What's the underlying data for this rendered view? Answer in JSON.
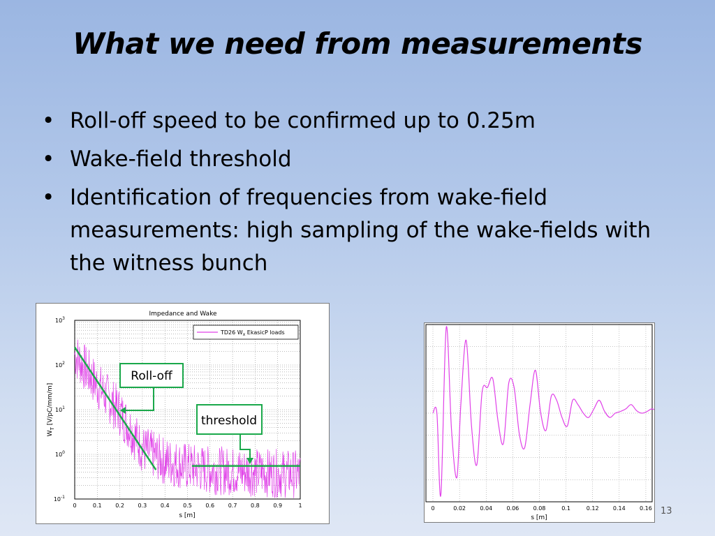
{
  "slide": {
    "title": "What we need from measurements",
    "bullets": [
      "Roll-off speed to be confirmed up to 0.25m",
      "Wake-field threshold",
      "Identification of frequencies from wake-field measurements: high sampling of the wake-fields with the witness bunch"
    ],
    "page_number": "13"
  },
  "colors": {
    "series": "#e040e8",
    "annotation": "#1aa84a"
  },
  "chart_data": [
    {
      "type": "line",
      "title": "Impedance and Wake",
      "xlabel": "s [m]",
      "ylabel_main": "W",
      "ylabel_sub": "T",
      "ylabel_rest": " [V/pC/mm/m]",
      "legend": {
        "prefix": "TD26 W",
        "sub": "x",
        "suffix": " EkasicP loads"
      },
      "legend_placement": "top-right",
      "y_scale": "log",
      "xlim": [
        0,
        1
      ],
      "ylim": [
        0.1,
        1000
      ],
      "grid": true,
      "x_ticks": [
        "0",
        "0.1",
        "0.2",
        "0.3",
        "0.4",
        "0.5",
        "0.6",
        "0.7",
        "0.8",
        "0.9",
        "1"
      ],
      "y_ticks": [
        {
          "base": "10",
          "exp": "-1"
        },
        {
          "base": "10",
          "exp": "0"
        },
        {
          "base": "10",
          "exp": "1"
        },
        {
          "base": "10",
          "exp": "2"
        },
        {
          "base": "10",
          "exp": "3"
        }
      ],
      "annotations": {
        "rolloff_label": "Roll-off",
        "threshold_label": "threshold",
        "rolloff_line": {
          "x": [
            0,
            0.36
          ],
          "y": [
            250,
            0.45
          ]
        },
        "threshold_line": {
          "x": [
            0.52,
            1
          ],
          "y": [
            0.55,
            0.55
          ]
        }
      },
      "series_envelope": {
        "s": [
          0,
          0.05,
          0.1,
          0.15,
          0.2,
          0.25,
          0.3,
          0.4,
          0.5,
          0.6,
          0.8,
          1
        ],
        "W": [
          200,
          90,
          40,
          20,
          10,
          4,
          1.5,
          0.8,
          0.6,
          0.5,
          0.45,
          0.4
        ]
      }
    },
    {
      "type": "line",
      "xlabel": "s [m]",
      "xlim": [
        0,
        0.17
      ],
      "grid": true,
      "x_ticks": [
        "0",
        "0.02",
        "0.04",
        "0.06",
        "0.08",
        "0.1",
        "0.12",
        "0.14",
        "0.16"
      ],
      "points": {
        "s": [
          0,
          0.003,
          0.006,
          0.01,
          0.014,
          0.018,
          0.021,
          0.025,
          0.029,
          0.033,
          0.037,
          0.041,
          0.045,
          0.049,
          0.053,
          0.057,
          0.061,
          0.065,
          0.069,
          0.073,
          0.077,
          0.081,
          0.085,
          0.089,
          0.093,
          0.097,
          0.101,
          0.105,
          0.109,
          0.113,
          0.117,
          0.121,
          0.125,
          0.129,
          0.133,
          0.137,
          0.141,
          0.145,
          0.149,
          0.153,
          0.157,
          0.161,
          0.165,
          0.17
        ],
        "W": [
          0,
          0,
          -0.95,
          1.0,
          -0.2,
          -0.75,
          0.1,
          0.85,
          -0.15,
          -0.6,
          0.25,
          0.3,
          0.4,
          -0.1,
          -0.35,
          0.35,
          0.3,
          -0.25,
          -0.4,
          0.1,
          0.5,
          0.0,
          -0.2,
          0.2,
          0.15,
          -0.05,
          -0.15,
          0.15,
          0.1,
          0.0,
          -0.05,
          0.05,
          0.15,
          0.02,
          -0.05,
          0.0,
          0.02,
          0.05,
          0.1,
          0.03,
          0.0,
          0.02,
          0.05,
          0.0
        ]
      }
    }
  ]
}
